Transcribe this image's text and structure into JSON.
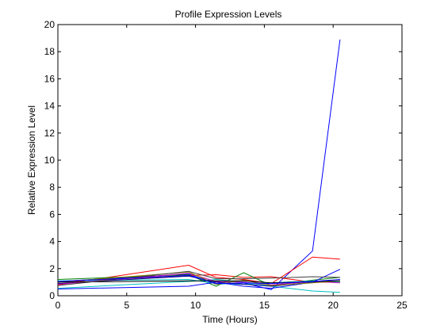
{
  "chart_data": {
    "type": "line",
    "title": "Profile Expression Levels",
    "xlabel": "Time (Hours)",
    "ylabel": "Relative Expression Level",
    "xlim": [
      0,
      25
    ],
    "ylim": [
      0,
      20
    ],
    "xticks": [
      0,
      5,
      10,
      15,
      20,
      25
    ],
    "yticks": [
      0,
      2,
      4,
      6,
      8,
      10,
      12,
      14,
      16,
      18,
      20
    ],
    "grid": false,
    "legend": "none",
    "x": [
      0,
      9.5,
      11.5,
      13.5,
      15.5,
      18.5,
      20.5
    ],
    "series": [
      {
        "color": "#0000ff",
        "values": [
          1.05,
          1.6,
          0.85,
          0.95,
          0.45,
          3.3,
          18.9
        ]
      },
      {
        "color": "#ff0000",
        "values": [
          0.8,
          2.25,
          1.35,
          1.2,
          0.9,
          2.85,
          2.7
        ]
      },
      {
        "color": "#ff0000",
        "values": [
          1.0,
          1.5,
          1.55,
          1.35,
          1.4,
          1.0,
          1.0
        ]
      },
      {
        "color": "#008000",
        "values": [
          1.2,
          1.55,
          0.7,
          1.7,
          0.75,
          1.15,
          1.35
        ]
      },
      {
        "color": "#00bfbf",
        "values": [
          0.55,
          1.05,
          1.2,
          1.0,
          0.7,
          0.35,
          0.25
        ]
      },
      {
        "color": "#00bfbf",
        "values": [
          1.1,
          1.2,
          0.9,
          0.85,
          0.95,
          1.1,
          1.0
        ]
      },
      {
        "color": "#0000ff",
        "values": [
          0.5,
          0.7,
          1.0,
          0.7,
          0.55,
          1.0,
          1.95
        ]
      },
      {
        "color": "#000080",
        "values": [
          0.9,
          1.45,
          1.0,
          0.85,
          0.7,
          1.0,
          1.1
        ]
      },
      {
        "color": "#bf00bf",
        "values": [
          0.85,
          1.65,
          1.05,
          1.0,
          0.8,
          1.05,
          0.95
        ]
      },
      {
        "color": "#808000",
        "values": [
          1.0,
          1.75,
          0.85,
          1.15,
          0.75,
          0.95,
          1.1
        ]
      },
      {
        "color": "#000000",
        "values": [
          1.0,
          1.1,
          1.1,
          1.1,
          0.95,
          1.05,
          1.1
        ]
      },
      {
        "color": "#404040",
        "values": [
          0.75,
          1.8,
          1.25,
          1.25,
          1.3,
          1.4,
          1.35
        ]
      },
      {
        "color": "#0000ff",
        "values": [
          1.05,
          1.5,
          0.9,
          0.95,
          0.9,
          1.05,
          1.2
        ]
      }
    ]
  }
}
